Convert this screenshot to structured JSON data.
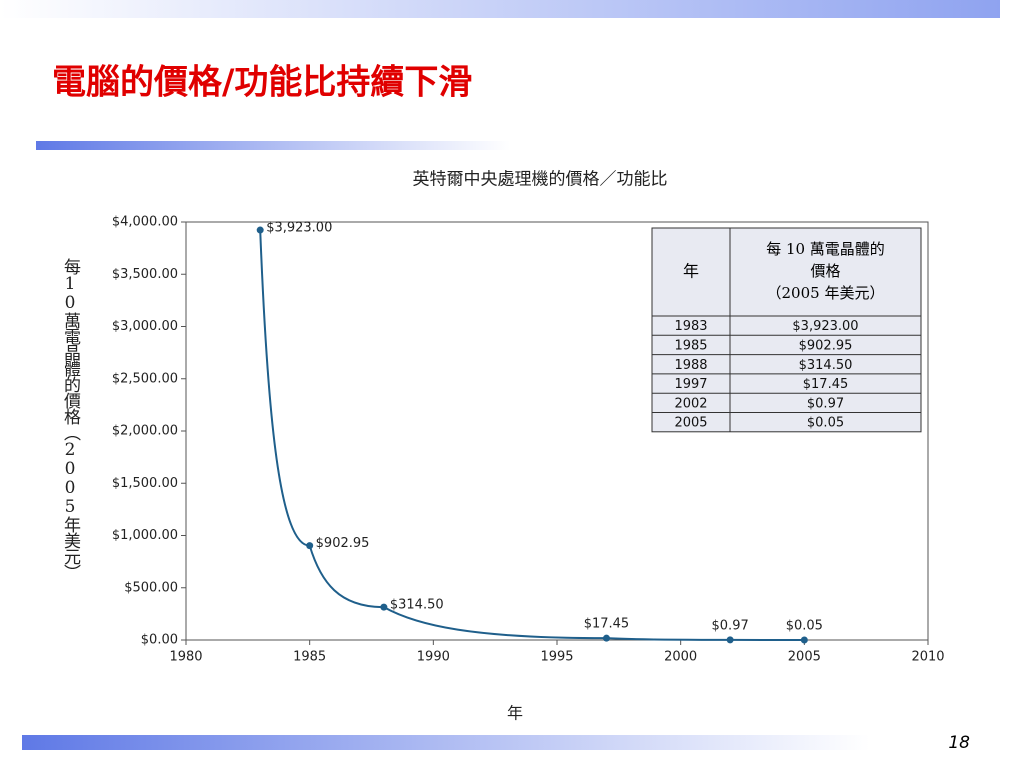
{
  "slide": {
    "title": "電腦的價格/功能比持續下滑",
    "page_number": "18"
  },
  "chart_data": {
    "type": "line",
    "title": "英特爾中央處理機的價格／功能比",
    "x_label": "年",
    "y_label": "每10萬電晶體的價格（2005年美元）",
    "x": [
      1983,
      1985,
      1988,
      1997,
      2002,
      2005
    ],
    "series": [
      {
        "color": "#1f5f8b",
        "values": [
          3923,
          902.95,
          314.5,
          17.45,
          0.97,
          0.05
        ],
        "value_labels": [
          "$3,923.00",
          "$902.95",
          "$314.50",
          "$17.45",
          "$0.97",
          "$0.05"
        ]
      }
    ],
    "xlim": [
      1980,
      2010
    ],
    "xticks": [
      1980,
      1985,
      1990,
      1995,
      2000,
      2005,
      2010
    ],
    "ylim": [
      0,
      4000
    ],
    "yticks": [
      {
        "value": 0,
        "label": "$0.00"
      },
      {
        "value": 500,
        "label": "$500.00"
      },
      {
        "value": 1000,
        "label": "$1,000.00"
      },
      {
        "value": 1500,
        "label": "$1,500.00"
      },
      {
        "value": 2000,
        "label": "$2,000.00"
      },
      {
        "value": 2500,
        "label": "$2,500.00"
      },
      {
        "value": 3000,
        "label": "$3,000.00"
      },
      {
        "value": 3500,
        "label": "$3,500.00"
      },
      {
        "value": 4000,
        "label": "$4,000.00"
      }
    ]
  },
  "table": {
    "year_header": "年",
    "price_header": [
      "每 10 萬電晶體的",
      "價格",
      "（2005 年美元）"
    ],
    "rows": [
      [
        "1983",
        "$3,923.00"
      ],
      [
        "1985",
        "$902.95"
      ],
      [
        "1988",
        "$314.50"
      ],
      [
        "1997",
        "$17.45"
      ],
      [
        "2002",
        "$0.97"
      ],
      [
        "2005",
        "$0.05"
      ]
    ]
  }
}
